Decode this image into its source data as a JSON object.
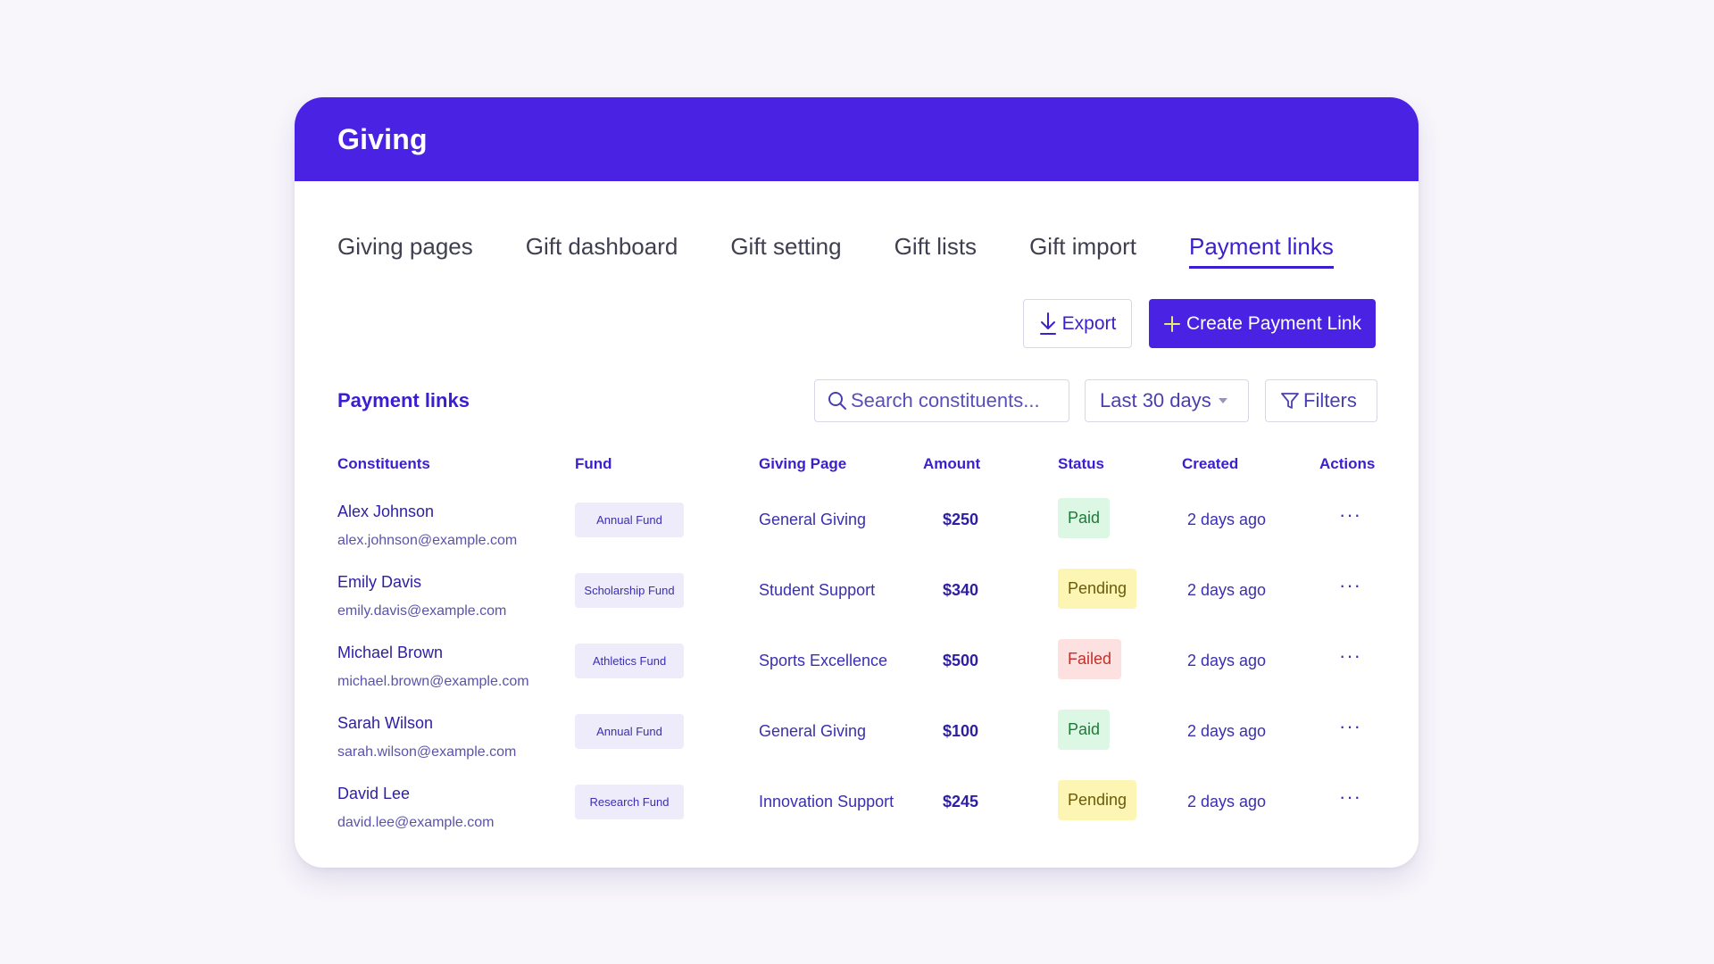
{
  "header": {
    "title": "Giving"
  },
  "tabs": [
    {
      "label": "Giving pages",
      "active": false
    },
    {
      "label": "Gift dashboard",
      "active": false
    },
    {
      "label": "Gift setting",
      "active": false
    },
    {
      "label": "Gift lists",
      "active": false
    },
    {
      "label": "Gift import",
      "active": false
    },
    {
      "label": "Payment links",
      "active": true
    }
  ],
  "toolbar": {
    "export_label": "Export",
    "create_label": "Create Payment Link"
  },
  "section": {
    "title": "Payment links",
    "search_placeholder": "Search constituents...",
    "date_range": "Last 30 days",
    "filters_label": "Filters"
  },
  "table": {
    "columns": [
      "Constituents",
      "Fund",
      "Giving Page",
      "Amount",
      "Status",
      "Created",
      "Actions"
    ],
    "rows": [
      {
        "name": "Alex Johnson",
        "email": "alex.johnson@example.com",
        "fund": "Annual Fund",
        "giving_page": "General Giving",
        "amount": "$250",
        "status": "Paid",
        "created": "2 days ago",
        "actions": "···"
      },
      {
        "name": "Emily Davis",
        "email": "emily.davis@example.com",
        "fund": "Scholarship Fund",
        "giving_page": "Student Support",
        "amount": "$340",
        "status": "Pending",
        "created": "2 days ago",
        "actions": "···"
      },
      {
        "name": "Michael Brown",
        "email": "michael.brown@example.com",
        "fund": "Athletics Fund",
        "giving_page": "Sports Excellence",
        "amount": "$500",
        "status": "Failed",
        "created": "2 days ago",
        "actions": "···"
      },
      {
        "name": "Sarah Wilson",
        "email": "sarah.wilson@example.com",
        "fund": "Annual Fund",
        "giving_page": "General Giving",
        "amount": "$100",
        "status": "Paid",
        "created": "2 days ago",
        "actions": "···"
      },
      {
        "name": "David Lee",
        "email": "david.lee@example.com",
        "fund": "Research Fund",
        "giving_page": "Innovation Support",
        "amount": "$245",
        "status": "Pending",
        "created": "2 days ago",
        "actions": "···"
      }
    ]
  },
  "colors": {
    "brand": "#4a22e3",
    "page_background": "#f8f6fb",
    "status": {
      "Paid": {
        "bg": "#dcf7e3",
        "fg": "#1f7a3a"
      },
      "Pending": {
        "bg": "#fcf5b4",
        "fg": "#6b5a0a"
      },
      "Failed": {
        "bg": "#fde0e0",
        "fg": "#c0322b"
      }
    }
  },
  "icons": {
    "export": "download-icon",
    "create": "plus-icon",
    "search": "search-icon",
    "range": "caret-down-icon",
    "filters": "filter-icon",
    "actions": "more-horizontal-icon"
  }
}
